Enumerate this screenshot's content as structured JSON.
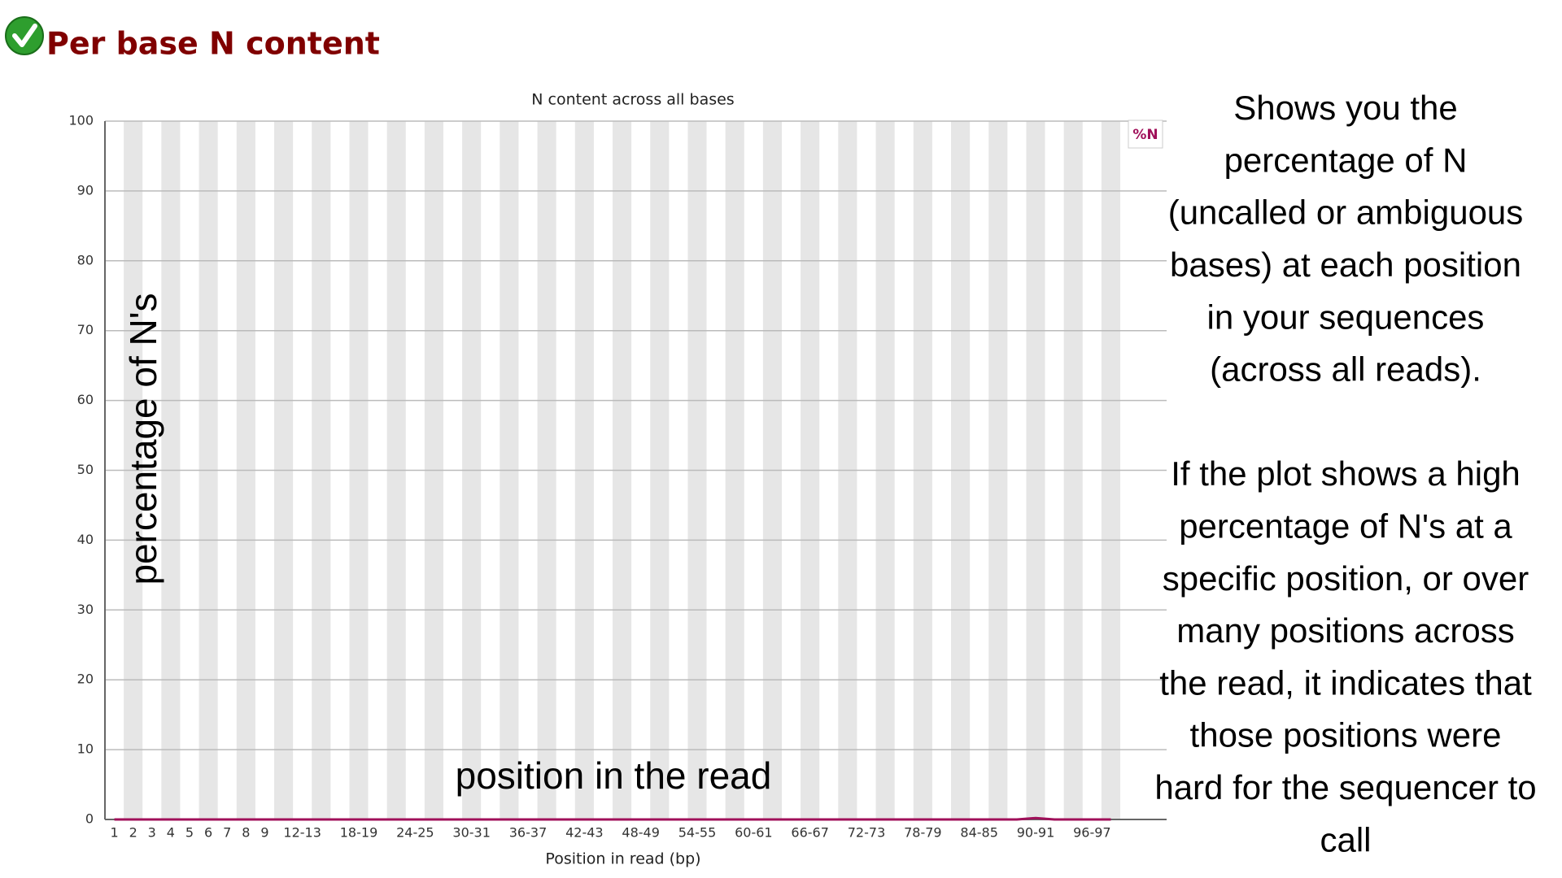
{
  "header": {
    "title": "Per base N content"
  },
  "chart_data": {
    "type": "line",
    "title": "N content across all bases",
    "xlabel": "Position in read (bp)",
    "categories": [
      "1",
      "2",
      "3",
      "4",
      "5",
      "6",
      "7",
      "8",
      "9",
      null,
      "12-13",
      null,
      null,
      "18-19",
      null,
      null,
      "24-25",
      null,
      null,
      "30-31",
      null,
      null,
      "36-37",
      null,
      null,
      "42-43",
      null,
      null,
      "48-49",
      null,
      null,
      "54-55",
      null,
      null,
      "60-61",
      null,
      null,
      "66-67",
      null,
      null,
      "72-73",
      null,
      null,
      "78-79",
      null,
      null,
      "84-85",
      null,
      null,
      "90-91",
      null,
      null,
      "96-97",
      null
    ],
    "series": [
      {
        "name": "%N",
        "color": "#a0105a",
        "values": [
          0,
          0,
          0,
          0,
          0,
          0,
          0,
          0,
          0,
          0,
          0,
          0,
          0,
          0,
          0,
          0,
          0,
          0,
          0,
          0,
          0,
          0,
          0,
          0,
          0,
          0,
          0,
          0,
          0,
          0,
          0,
          0,
          0,
          0,
          0,
          0,
          0,
          0,
          0,
          0,
          0,
          0,
          0,
          0,
          0,
          0,
          0,
          0,
          0,
          0.2,
          0,
          0,
          0,
          0
        ]
      }
    ],
    "ylim": [
      0,
      100
    ],
    "yticks": [
      0,
      10,
      20,
      30,
      40,
      50,
      60,
      70,
      80,
      90,
      100
    ],
    "grid": true,
    "legend": "top-right",
    "annotations": {
      "ylabel": "percentage of N's",
      "xlabel": "position in the read",
      "description": [
        "Shows you the",
        "percentage of N",
        "(uncalled or ambiguous",
        "bases) at each position",
        "in your sequences",
        "(across all reads).",
        "",
        "If the plot shows a high",
        "percentage of N's at a",
        "specific position, or over",
        "many positions across",
        "the read, it indicates that",
        "those positions were",
        "hard for the sequencer to",
        "call"
      ]
    }
  }
}
